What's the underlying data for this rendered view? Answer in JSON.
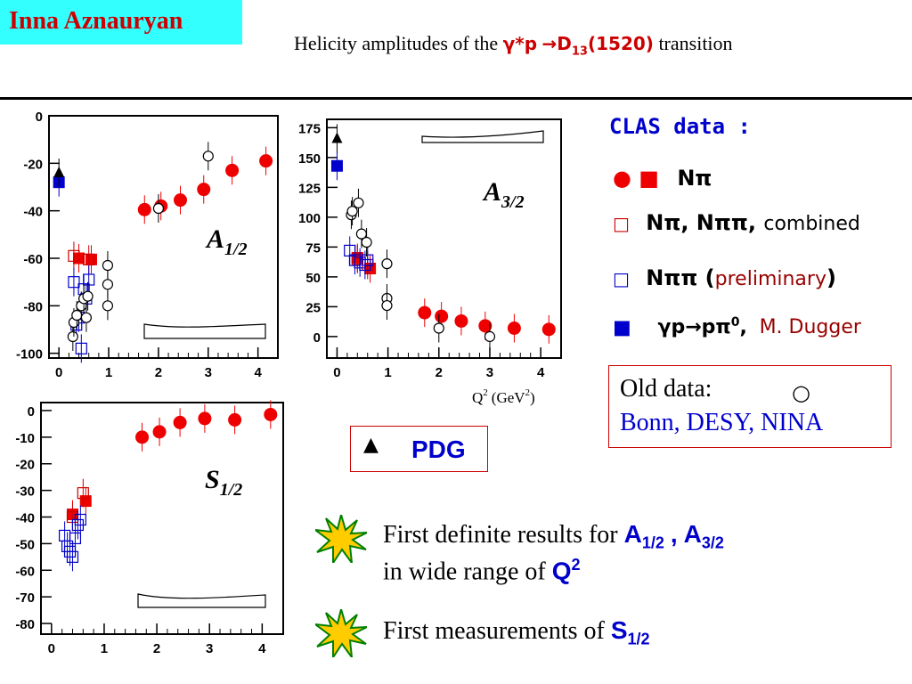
{
  "header": {
    "author": "Inna Aznauryan",
    "title_prefix": "Helicity amplitudes  of  the",
    "title_gamma": "γ*p",
    "title_arrow": "→",
    "title_state": "D",
    "title_state_sub": "13",
    "title_state_mass": "(1520)",
    "title_suffix": "transition"
  },
  "legend": {
    "title": "CLAS data :",
    "items": [
      {
        "symbols": "● ■",
        "label": "Nπ",
        "colors": [
          "#ee0000",
          "#ee0000"
        ]
      },
      {
        "symbols": "□",
        "label": "Nπ, Nππ,",
        "note": "combined",
        "color": "#cc0000"
      },
      {
        "symbols": "□",
        "label": "Nππ (",
        "note": "preliminary",
        "close": ")",
        "color": "#0000cc"
      },
      {
        "symbols": "■",
        "label": "γp→pπ",
        "sup": "0",
        "comma": ",",
        "note": "M. Dugger",
        "color": "#0000cc"
      }
    ],
    "old_data_label": "Old data:",
    "old_data_symbol": "○",
    "old_data_sources": "Bonn, DESY, NINA",
    "pdg_symbol": "▲",
    "pdg_label": "PDG"
  },
  "bullets": [
    {
      "line1_text": "First definite results for",
      "line1_b1": "A",
      "line1_s1": "1/2",
      "line1_comma": ",",
      "line1_b2": "A",
      "line1_s2": "3/2",
      "line2_text": "in wide range of",
      "line2_b": "Q",
      "line2_sup": "2"
    },
    {
      "text": "First  measurements of",
      "b": "S",
      "sub": "1/2"
    }
  ],
  "colors": {
    "author_bg": "#33ffff",
    "author_text": "#cc0000",
    "clas": "#ee0000",
    "blue": "#0000cc",
    "box": "#cc0000"
  },
  "chart_data": [
    {
      "type": "scatter",
      "title": "A1/2",
      "label_main": "A",
      "label_sub": "1/2",
      "xlim": [
        -0.2,
        4.4
      ],
      "ylim": [
        -102,
        0
      ],
      "xticks": [
        0,
        1,
        2,
        3,
        4
      ],
      "yticks": [
        0,
        -20,
        -40,
        -60,
        -80,
        -100
      ],
      "series": [
        {
          "name": "CLAS Nπ (circles)",
          "marker": "filled-circle",
          "color": "#ee0000",
          "points": [
            {
              "x": 1.72,
              "y": -39.5
            },
            {
              "x": 2.05,
              "y": -38
            },
            {
              "x": 2.44,
              "y": -35.5
            },
            {
              "x": 2.91,
              "y": -31
            },
            {
              "x": 3.48,
              "y": -23
            },
            {
              "x": 4.16,
              "y": -19
            }
          ]
        },
        {
          "name": "CLAS Nπ (squares)",
          "marker": "filled-square",
          "color": "#ee0000",
          "points": [
            {
              "x": 0.4,
              "y": -60
            },
            {
              "x": 0.65,
              "y": -60.5
            }
          ]
        },
        {
          "name": "Nπ, Nππ combined",
          "marker": "open-square",
          "color": "#cc0000",
          "points": [
            {
              "x": 0.3,
              "y": -59
            },
            {
              "x": 0.6,
              "y": -60.5
            }
          ]
        },
        {
          "name": "Nππ preliminary",
          "marker": "open-square",
          "color": "#0000cc",
          "points": [
            {
              "x": 0.3,
              "y": -70
            },
            {
              "x": 0.35,
              "y": -88
            },
            {
              "x": 0.4,
              "y": -85
            },
            {
              "x": 0.45,
              "y": -98
            },
            {
              "x": 0.5,
              "y": -73
            },
            {
              "x": 0.55,
              "y": -77
            },
            {
              "x": 0.6,
              "y": -69
            }
          ]
        },
        {
          "name": "γp→pπ0 M. Dugger",
          "marker": "filled-square",
          "color": "#0000cc",
          "points": [
            {
              "x": 0.0,
              "y": -28
            }
          ]
        },
        {
          "name": "Old data",
          "marker": "open-circle",
          "color": "#000000",
          "points": [
            {
              "x": 0.28,
              "y": -93
            },
            {
              "x": 0.3,
              "y": -87
            },
            {
              "x": 0.36,
              "y": -84
            },
            {
              "x": 0.45,
              "y": -80
            },
            {
              "x": 0.5,
              "y": -77
            },
            {
              "x": 0.55,
              "y": -85
            },
            {
              "x": 0.58,
              "y": -76
            },
            {
              "x": 0.98,
              "y": -63
            },
            {
              "x": 0.98,
              "y": -71
            },
            {
              "x": 0.98,
              "y": -80
            },
            {
              "x": 2.0,
              "y": -39
            },
            {
              "x": 3.0,
              "y": -17
            }
          ]
        },
        {
          "name": "PDG",
          "marker": "filled-triangle",
          "color": "#000000",
          "points": [
            {
              "x": 0.0,
              "y": -24
            }
          ]
        }
      ]
    },
    {
      "type": "scatter",
      "title": "A3/2",
      "label_main": "A",
      "label_sub": "3/2",
      "xlabel_main": "Q",
      "xlabel_sup": "2",
      "xlabel_unit": "(GeV",
      "xlabel_unit_sup": "2",
      "xlabel_close": ")",
      "xlim": [
        -0.2,
        4.4
      ],
      "ylim": [
        -18,
        182
      ],
      "xticks": [
        0,
        1,
        2,
        3,
        4
      ],
      "yticks": [
        0,
        25,
        50,
        75,
        100,
        125,
        150,
        175
      ],
      "series": [
        {
          "name": "CLAS Nπ (circles)",
          "marker": "filled-circle",
          "color": "#ee0000",
          "points": [
            {
              "x": 1.72,
              "y": 20
            },
            {
              "x": 2.05,
              "y": 17
            },
            {
              "x": 2.44,
              "y": 13
            },
            {
              "x": 2.91,
              "y": 9
            },
            {
              "x": 3.48,
              "y": 7
            },
            {
              "x": 4.16,
              "y": 6
            }
          ]
        },
        {
          "name": "CLAS Nπ (squares)",
          "marker": "filled-square",
          "color": "#ee0000",
          "points": [
            {
              "x": 0.4,
              "y": 66
            },
            {
              "x": 0.65,
              "y": 57
            }
          ]
        },
        {
          "name": "Nπ, Nππ combined",
          "marker": "open-square",
          "color": "#cc0000",
          "points": [
            {
              "x": 0.4,
              "y": 65
            },
            {
              "x": 0.6,
              "y": 60
            }
          ]
        },
        {
          "name": "Nππ preliminary",
          "marker": "open-square",
          "color": "#0000cc",
          "points": [
            {
              "x": 0.25,
              "y": 72
            },
            {
              "x": 0.35,
              "y": 64
            },
            {
              "x": 0.45,
              "y": 62
            },
            {
              "x": 0.55,
              "y": 60
            },
            {
              "x": 0.6,
              "y": 64
            }
          ]
        },
        {
          "name": "γp→pπ0 M. Dugger",
          "marker": "filled-square",
          "color": "#0000cc",
          "points": [
            {
              "x": 0.0,
              "y": 143
            }
          ]
        },
        {
          "name": "Old data",
          "marker": "open-circle",
          "color": "#000000",
          "points": [
            {
              "x": 0.28,
              "y": 102
            },
            {
              "x": 0.3,
              "y": 105
            },
            {
              "x": 0.42,
              "y": 112
            },
            {
              "x": 0.48,
              "y": 86
            },
            {
              "x": 0.58,
              "y": 79
            },
            {
              "x": 0.98,
              "y": 61
            },
            {
              "x": 0.98,
              "y": 32
            },
            {
              "x": 0.98,
              "y": 26
            },
            {
              "x": 2.0,
              "y": 7
            },
            {
              "x": 3.0,
              "y": 0
            }
          ]
        },
        {
          "name": "PDG",
          "marker": "filled-triangle",
          "color": "#000000",
          "points": [
            {
              "x": 0.0,
              "y": 166
            }
          ]
        }
      ]
    },
    {
      "type": "scatter",
      "title": "S1/2",
      "label_main": "S",
      "label_sub": "1/2",
      "xlim": [
        -0.2,
        4.4
      ],
      "ylim": [
        -84,
        3
      ],
      "xticks": [
        0,
        1,
        2,
        3,
        4
      ],
      "yticks": [
        0,
        -10,
        -20,
        -30,
        -40,
        -50,
        -60,
        -70,
        -80
      ],
      "series": [
        {
          "name": "CLAS Nπ (circles)",
          "marker": "filled-circle",
          "color": "#ee0000",
          "points": [
            {
              "x": 1.72,
              "y": -10
            },
            {
              "x": 2.05,
              "y": -8
            },
            {
              "x": 2.44,
              "y": -4.5
            },
            {
              "x": 2.91,
              "y": -3
            },
            {
              "x": 3.48,
              "y": -3.5
            },
            {
              "x": 4.16,
              "y": -1.5
            }
          ]
        },
        {
          "name": "CLAS Nπ (squares)",
          "marker": "filled-square",
          "color": "#ee0000",
          "points": [
            {
              "x": 0.4,
              "y": -39
            },
            {
              "x": 0.65,
              "y": -34
            }
          ]
        },
        {
          "name": "Nπ, Nππ combined",
          "marker": "open-square",
          "color": "#cc0000",
          "points": [
            {
              "x": 0.4,
              "y": -40
            },
            {
              "x": 0.6,
              "y": -31
            }
          ]
        },
        {
          "name": "Nππ preliminary",
          "marker": "open-square",
          "color": "#0000cc",
          "points": [
            {
              "x": 0.25,
              "y": -47
            },
            {
              "x": 0.3,
              "y": -51
            },
            {
              "x": 0.35,
              "y": -53
            },
            {
              "x": 0.4,
              "y": -55
            },
            {
              "x": 0.45,
              "y": -48
            },
            {
              "x": 0.5,
              "y": -43
            },
            {
              "x": 0.55,
              "y": -41
            }
          ]
        }
      ]
    }
  ]
}
